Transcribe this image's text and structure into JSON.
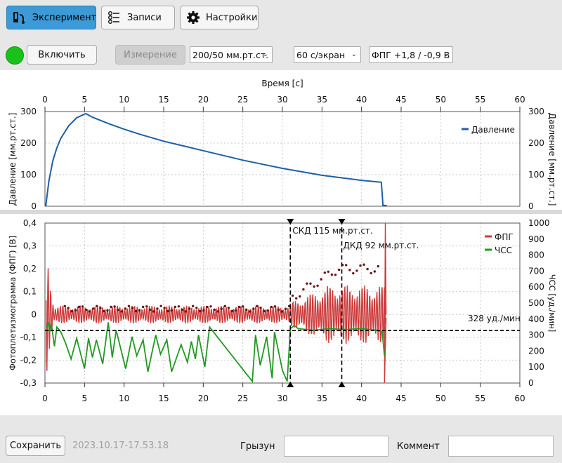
{
  "tabs": [
    {
      "label": "Эксперимент",
      "icon": "experiment-icon",
      "active": true
    },
    {
      "label": "Записи",
      "icon": "records-icon",
      "active": false
    },
    {
      "label": "Настройки",
      "icon": "gear-icon",
      "active": false
    }
  ],
  "controls": {
    "enable_label": "Включить",
    "measure_label": "Измерение",
    "pressure_range": "200/50 мм.рт.ст.",
    "time_window": "60 с/экран",
    "ppg_range": "ФПГ +1,8 / -0,9 В",
    "status_color": "#19c219"
  },
  "chart_data": [
    {
      "type": "line",
      "xlabel": "Время [с]",
      "ylabel": "Давление [мм.рт.ст.]",
      "ylabel_right": "Давление [мм.рт.ст.]",
      "xlim": [
        0,
        60
      ],
      "ylim": [
        0,
        300
      ],
      "xticks": [
        "0",
        "5",
        "10",
        "15",
        "20",
        "25",
        "30",
        "35",
        "40",
        "45",
        "50",
        "55",
        "60"
      ],
      "yticks": [
        "0",
        "100",
        "200",
        "300"
      ],
      "grid": true,
      "legend": "top-right",
      "series": [
        {
          "name": "Давление",
          "color": "#1f5fa8",
          "x": [
            0.1,
            0.5,
            1,
            1.5,
            2,
            3,
            4,
            5,
            5.2,
            6,
            8,
            10,
            12,
            15,
            18,
            20,
            25,
            30,
            35,
            40,
            42.5,
            42.6,
            42.7,
            43.2
          ],
          "y": [
            0,
            80,
            145,
            185,
            215,
            255,
            280,
            292,
            293,
            282,
            262,
            244,
            228,
            206,
            188,
            176,
            146,
            120,
            98,
            82,
            76,
            40,
            3,
            2
          ]
        }
      ]
    },
    {
      "type": "line",
      "xlabel": "",
      "ylabel": "Фотоплетизмограмма (ФПГ) [В]",
      "ylabel_right": "ЧСС [уд./мин]",
      "xlim": [
        0,
        60
      ],
      "ylim": [
        -0.3,
        0.4
      ],
      "ylim_right": [
        0,
        1000
      ],
      "xticks": [
        "0",
        "5",
        "10",
        "15",
        "20",
        "25",
        "30",
        "35",
        "40",
        "45",
        "50",
        "55",
        "60"
      ],
      "yticks": [
        "-0,3",
        "-0,2",
        "-0,1",
        "0",
        "0,1",
        "0,2",
        "0,3",
        "0,4"
      ],
      "yticks_right": [
        "0",
        "100",
        "200",
        "300",
        "400",
        "500",
        "600",
        "700",
        "800",
        "900",
        "1000"
      ],
      "grid": true,
      "legend": "top-right",
      "series": [
        {
          "name": "ФПГ",
          "color": "#cc3b3b"
        },
        {
          "name": "ЧСС",
          "color": "#229922",
          "x": [
            0.2,
            0.4,
            0.6,
            0.8,
            1.0,
            1.2,
            1.5,
            2.0,
            2.6,
            3.3,
            4.0,
            5.0,
            5.5,
            6.0,
            6.5,
            7.3,
            8.0,
            8.5,
            9.0,
            9.5,
            10.2,
            11.0,
            11.6,
            12.4,
            13.0,
            14.0,
            14.6,
            15.4,
            16.0,
            17.2,
            18.0,
            18.5,
            19.0,
            19.4,
            20.2,
            20.8,
            26.2,
            26.6,
            27.2,
            28.0,
            28.7,
            29.0,
            30.0,
            30.6,
            31.0,
            31.5,
            32.0,
            34.0,
            36.0,
            38.0,
            40.0,
            42.0,
            42.6,
            42.9
          ],
          "y": [
            350,
            380,
            320,
            370,
            300,
            230,
            350,
            320,
            250,
            150,
            280,
            90,
            280,
            160,
            270,
            120,
            380,
            160,
            330,
            230,
            90,
            290,
            170,
            270,
            70,
            300,
            180,
            270,
            70,
            240,
            130,
            260,
            150,
            300,
            100,
            350,
            10,
            300,
            110,
            290,
            30,
            320,
            80,
            10,
            340,
            360,
            340,
            330,
            340,
            335,
            340,
            330,
            320,
            170
          ]
        }
      ],
      "annotations": [
        {
          "text": "СКД 115 мм.рт.ст.",
          "x": 31,
          "kind": "vertical-line"
        },
        {
          "text": "ДКД 92 мм.рт.ст.",
          "x": 37.5,
          "kind": "vertical-line"
        },
        {
          "text": "328 уд./мин",
          "y_right": 328,
          "kind": "horizontal-line"
        }
      ]
    }
  ],
  "bottom": {
    "save_label": "Сохранить",
    "timestamp": "2023.10.17-17.53.18",
    "name_label": "Грызун",
    "name_value": "",
    "comment_label": "Коммент",
    "comment_value": ""
  }
}
